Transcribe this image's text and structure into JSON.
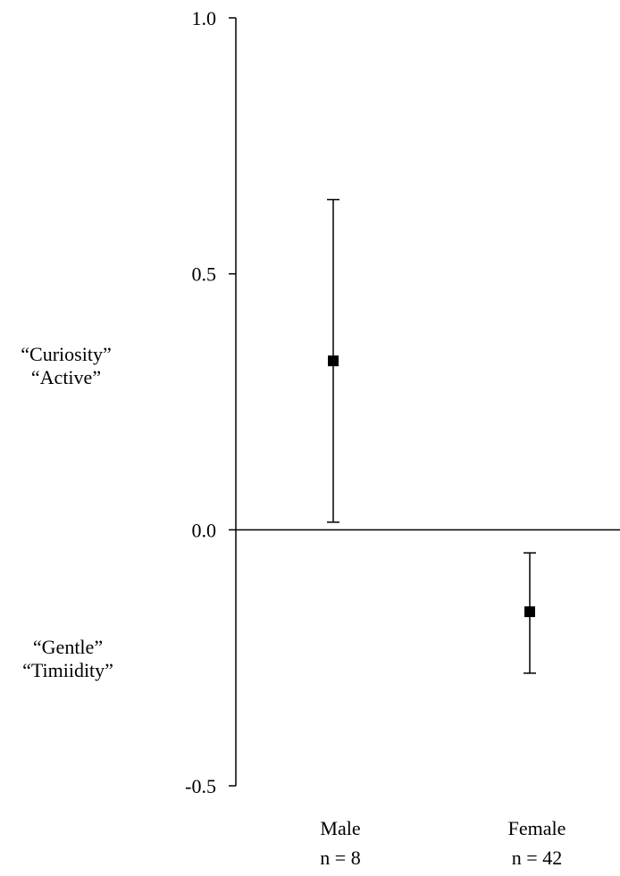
{
  "chart_data": {
    "type": "scatter",
    "ylim": [
      -0.5,
      1.0
    ],
    "yticks": [
      "1.0",
      "0.5",
      "0.0",
      "-0.5"
    ],
    "ytick_values": [
      1.0,
      0.5,
      0.0,
      -0.5
    ],
    "categories": [
      {
        "label": "Male",
        "n_label": "n = 8"
      },
      {
        "label": "Female",
        "n_label": "n = 42"
      }
    ],
    "series": [
      {
        "values": [
          0.33,
          -0.16
        ],
        "lower": [
          0.015,
          -0.28
        ],
        "upper": [
          0.645,
          -0.045
        ]
      }
    ],
    "annotations": {
      "positive": [
        "“Curiosity”",
        "“Active”"
      ],
      "negative": [
        "“Gentle”",
        "“Timiidity”"
      ]
    }
  }
}
